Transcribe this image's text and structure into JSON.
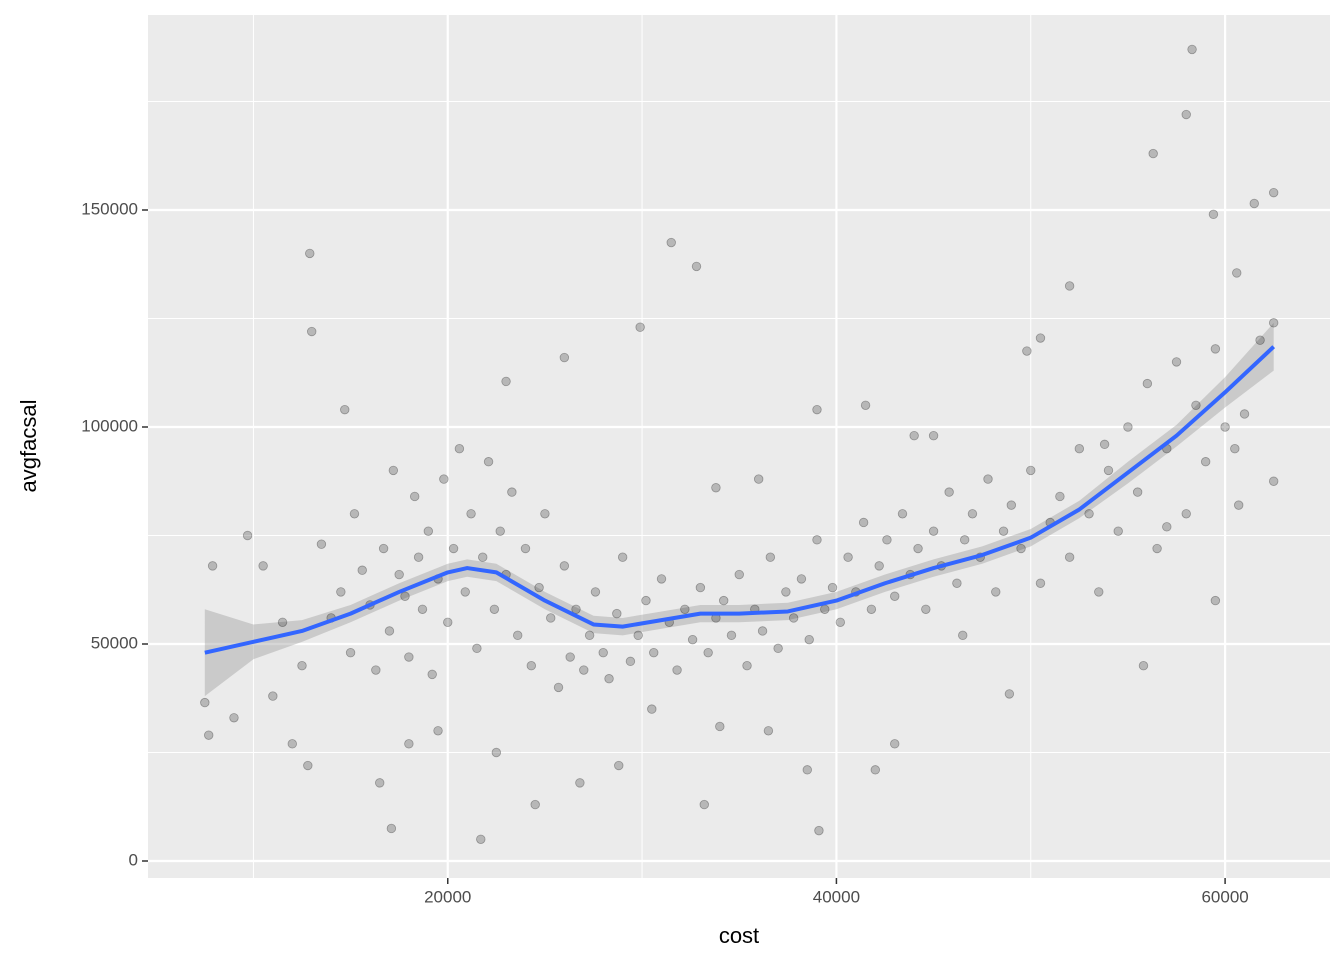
{
  "chart_data": {
    "type": "scatter",
    "xlabel": "cost",
    "ylabel": "avgfacsal",
    "xlim": [
      4576,
      65398
    ],
    "ylim": [
      -3917,
      194931
    ],
    "xticks": [
      20000,
      40000,
      60000
    ],
    "yticks": [
      0,
      50000,
      100000,
      150000
    ],
    "xminor": [
      10000,
      30000,
      50000
    ],
    "yminor": [
      25000,
      75000,
      125000,
      175000
    ],
    "grid": true,
    "points": {
      "color": "#000000",
      "x": [
        12900,
        13000,
        58300,
        58000,
        56300,
        31500,
        32800,
        62500,
        61500,
        59400,
        21700,
        39100,
        17100,
        7500,
        7700,
        7900,
        9700,
        9000,
        14700,
        23000,
        29900,
        33200,
        38500,
        42000,
        43000,
        52000,
        50500,
        60600,
        59500,
        62500,
        60700,
        55800,
        48900,
        49800,
        45000,
        41500,
        39000,
        26000,
        13500,
        14000,
        14500,
        15000,
        15200,
        15600,
        16000,
        16300,
        16700,
        17000,
        17200,
        17500,
        17800,
        18000,
        18300,
        18500,
        18700,
        19000,
        19200,
        19500,
        19800,
        20000,
        20300,
        20600,
        20900,
        21200,
        21500,
        21800,
        22100,
        22400,
        22700,
        23000,
        23300,
        23600,
        24000,
        24300,
        24700,
        25000,
        25300,
        25700,
        26000,
        26300,
        26600,
        27000,
        27300,
        27600,
        28000,
        28300,
        28700,
        29000,
        29400,
        29800,
        30200,
        30600,
        31000,
        31400,
        31800,
        32200,
        32600,
        33000,
        33400,
        33800,
        34200,
        34600,
        35000,
        35400,
        35800,
        36200,
        36600,
        37000,
        37400,
        37800,
        38200,
        38600,
        39000,
        39400,
        39800,
        40200,
        40600,
        41000,
        41400,
        41800,
        42200,
        42600,
        43000,
        43400,
        43800,
        44200,
        44600,
        45000,
        45400,
        45800,
        46200,
        46600,
        47000,
        47400,
        47800,
        48200,
        48600,
        49000,
        49500,
        50000,
        50500,
        51000,
        51500,
        52000,
        52500,
        53000,
        53500,
        54000,
        54500,
        55000,
        55500,
        56000,
        56500,
        57000,
        57500,
        58000,
        58500,
        59000,
        59500,
        60000,
        60500,
        61000,
        61800,
        62500,
        57000,
        53800,
        11000,
        12000,
        12800,
        10500,
        11500,
        12500,
        16500,
        18000,
        19500,
        22500,
        24500,
        26800,
        28800,
        30500,
        34000,
        36500,
        44000,
        46500,
        36000,
        33800
      ],
      "y": [
        140000,
        122000,
        187000,
        172000,
        163000,
        142500,
        137000,
        154000,
        151500,
        149000,
        5000,
        7000,
        7500,
        36500,
        29000,
        68000,
        75000,
        33000,
        104000,
        110500,
        123000,
        13000,
        21000,
        21000,
        27000,
        132500,
        120500,
        135500,
        60000,
        87500,
        82000,
        45000,
        38500,
        117500,
        98000,
        105000,
        104000,
        116000,
        73000,
        56000,
        62000,
        48000,
        80000,
        67000,
        59000,
        44000,
        72000,
        53000,
        90000,
        66000,
        61000,
        47000,
        84000,
        70000,
        58000,
        76000,
        43000,
        65000,
        88000,
        55000,
        72000,
        95000,
        62000,
        80000,
        49000,
        70000,
        92000,
        58000,
        76000,
        66000,
        85000,
        52000,
        72000,
        45000,
        63000,
        80000,
        56000,
        40000,
        68000,
        47000,
        58000,
        44000,
        52000,
        62000,
        48000,
        42000,
        57000,
        70000,
        46000,
        52000,
        60000,
        48000,
        65000,
        55000,
        44000,
        58000,
        51000,
        63000,
        48000,
        56000,
        60000,
        52000,
        66000,
        45000,
        58000,
        53000,
        70000,
        49000,
        62000,
        56000,
        65000,
        51000,
        74000,
        58000,
        63000,
        55000,
        70000,
        62000,
        78000,
        58000,
        68000,
        74000,
        61000,
        80000,
        66000,
        72000,
        58000,
        76000,
        68000,
        85000,
        64000,
        74000,
        80000,
        70000,
        88000,
        62000,
        76000,
        82000,
        72000,
        90000,
        64000,
        78000,
        84000,
        70000,
        95000,
        80000,
        62000,
        90000,
        76000,
        100000,
        85000,
        110000,
        72000,
        95000,
        115000,
        80000,
        105000,
        92000,
        118000,
        100000,
        95000,
        103000,
        120000,
        124000,
        77000,
        96000,
        38000,
        27000,
        22000,
        68000,
        55000,
        45000,
        18000,
        27000,
        30000,
        25000,
        13000,
        18000,
        22000,
        35000,
        31000,
        30000,
        98000,
        52000,
        88000,
        86000
      ]
    },
    "smooth": {
      "color": "#3366ff",
      "band_color": "#999999",
      "x": [
        7500,
        10000,
        12500,
        15000,
        17500,
        20000,
        21000,
        22500,
        25000,
        27500,
        29000,
        31000,
        33000,
        35000,
        37500,
        40000,
        42500,
        45000,
        47500,
        50000,
        52500,
        55000,
        57500,
        60000,
        62500
      ],
      "y": [
        48000,
        50500,
        53000,
        57000,
        62000,
        66500,
        67500,
        66500,
        60000,
        54500,
        54000,
        55500,
        57000,
        57000,
        57500,
        60000,
        64000,
        67500,
        70500,
        74500,
        81000,
        89500,
        98000,
        108000,
        118500
      ],
      "ymin": [
        38000,
        46500,
        50500,
        55000,
        60000,
        64500,
        65500,
        64500,
        58000,
        52500,
        52000,
        53500,
        55000,
        55000,
        55500,
        58000,
        62000,
        65500,
        68500,
        72500,
        79000,
        87000,
        95500,
        104500,
        113000
      ],
      "ymax": [
        58000,
        54500,
        55500,
        59000,
        64000,
        68500,
        69500,
        68500,
        62000,
        56500,
        56000,
        57500,
        59000,
        59000,
        59500,
        62000,
        66000,
        69500,
        72500,
        76500,
        83000,
        92000,
        100500,
        111500,
        124000
      ]
    }
  }
}
